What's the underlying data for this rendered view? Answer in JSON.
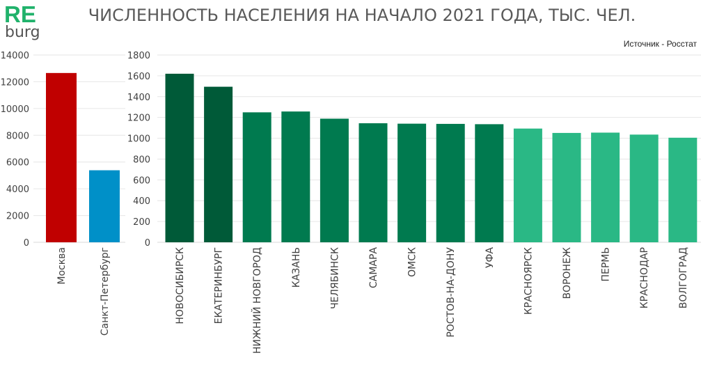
{
  "logo": {
    "re": "RE",
    "burg": "burg"
  },
  "title": "ЧИСЛЕННОСТЬ НАСЕЛЕНИЯ НА НАЧАЛО 2021 ГОДА, ТЫС. ЧЕЛ.",
  "source": "Источник - Росстат",
  "chart_data": [
    {
      "type": "bar",
      "title": "",
      "categories": [
        "Москва",
        "Санкт-Петербург"
      ],
      "values": [
        12655,
        5384
      ],
      "ylim": [
        0,
        14000
      ],
      "yticks": [
        "0",
        "2000",
        "4000",
        "6000",
        "8000",
        "10000",
        "12000",
        "14000"
      ],
      "grid": true,
      "colors": [
        "#c00000",
        "#0090c8"
      ]
    },
    {
      "type": "bar",
      "title": "",
      "categories": [
        "НОВОСИБИРСК",
        "ЕКАТЕРИНБУРГ",
        "НИЖНИЙ НОВГОРОД",
        "КАЗАНЬ",
        "ЧЕЛЯБИНСК",
        "САМАРА",
        "ОМСК",
        "РОСТОВ-НА-ДОНУ",
        "УФА",
        "КРАСНОЯРСК",
        "ВОРОНЕЖ",
        "ПЕРМЬ",
        "КРАСНОДАР",
        "ВОЛГОГРАД"
      ],
      "values": [
        1620,
        1495,
        1249,
        1257,
        1188,
        1144,
        1140,
        1138,
        1135,
        1093,
        1051,
        1054,
        1035,
        1005
      ],
      "ylim": [
        0,
        1800
      ],
      "yticks": [
        "0",
        "200",
        "400",
        "600",
        "800",
        "1000",
        "1200",
        "1400",
        "1600",
        "1800"
      ],
      "grid": true,
      "colors": [
        "#005a38",
        "#005a38",
        "#007a4f",
        "#007a4f",
        "#007a4f",
        "#007a4f",
        "#007a4f",
        "#007a4f",
        "#007a4f",
        "#2ab885",
        "#2ab885",
        "#2ab885",
        "#2ab885",
        "#2ab885"
      ]
    }
  ]
}
